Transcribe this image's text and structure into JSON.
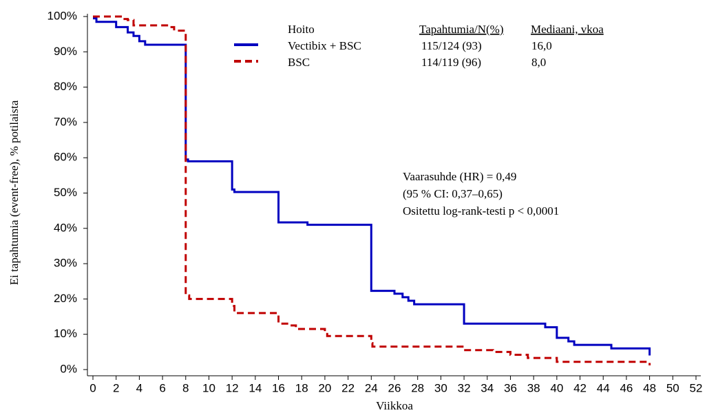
{
  "chart_data": {
    "type": "step",
    "ylabel": "Ei tapahtumia (event-free), % potilaista",
    "xlabel": "Viikkoa",
    "xlim": [
      0,
      52
    ],
    "ylim": [
      0,
      100
    ],
    "xticks": [
      0,
      2,
      4,
      6,
      8,
      10,
      12,
      14,
      16,
      18,
      20,
      22,
      24,
      26,
      28,
      30,
      32,
      34,
      36,
      38,
      40,
      42,
      44,
      46,
      48,
      50,
      52
    ],
    "yticks": [
      {
        "value": 0,
        "label": "0%"
      },
      {
        "value": 10,
        "label": "10%"
      },
      {
        "value": 20,
        "label": "20%"
      },
      {
        "value": 30,
        "label": "30%"
      },
      {
        "value": 40,
        "label": "40%"
      },
      {
        "value": 50,
        "label": "50%"
      },
      {
        "value": 60,
        "label": "60%"
      },
      {
        "value": 70,
        "label": "70%"
      },
      {
        "value": 80,
        "label": "80%"
      },
      {
        "value": 90,
        "label": "90%"
      },
      {
        "value": 100,
        "label": "100%"
      }
    ],
    "series": [
      {
        "name": "Vectibix + BSC",
        "color": "#0000c0",
        "dash": false,
        "x": [
          0,
          0.3,
          2,
          3,
          3.5,
          4,
          4.5,
          8,
          8.2,
          12,
          12.2,
          16,
          18.5,
          24,
          26,
          26.7,
          27.2,
          27.7,
          32,
          39,
          40,
          41,
          41.5,
          44.7,
          48
        ],
        "values": [
          99.5,
          98.5,
          97,
          95.5,
          94.5,
          93,
          92,
          59.5,
          59,
          51,
          50.3,
          41.7,
          41,
          22.3,
          21.5,
          20.5,
          19.5,
          18.5,
          13,
          12,
          9,
          8,
          7,
          6,
          4
        ]
      },
      {
        "name": "BSC",
        "color": "#c00000",
        "dash": true,
        "x": [
          0,
          2.5,
          3,
          3.5,
          6.5,
          7,
          8,
          8.3,
          12,
          12.2,
          16,
          17,
          17.5,
          20,
          20.2,
          24,
          24.1,
          32,
          34.5,
          36,
          37.5,
          40,
          48
        ],
        "values": [
          100,
          99.3,
          99,
          97.5,
          97,
          96,
          21,
          20,
          18,
          16,
          13,
          12.5,
          11.5,
          10.5,
          9.5,
          7.5,
          6.5,
          5.5,
          5,
          4.2,
          3.3,
          2.2,
          1.2
        ]
      }
    ],
    "legend_table": {
      "headers": [
        "Hoito",
        "Tapahtumia/N(%)",
        "Mediaani, vkoa"
      ],
      "rows": [
        [
          "115/124 (93)",
          "16,0"
        ],
        [
          "114/119 (96)",
          "8,0"
        ]
      ]
    },
    "annotations": [
      "Vaarasuhde (HR) = 0,49",
      "(95 % CI: 0,37–0,65)",
      "Ositettu log-rank-testi p < 0,0001"
    ]
  }
}
